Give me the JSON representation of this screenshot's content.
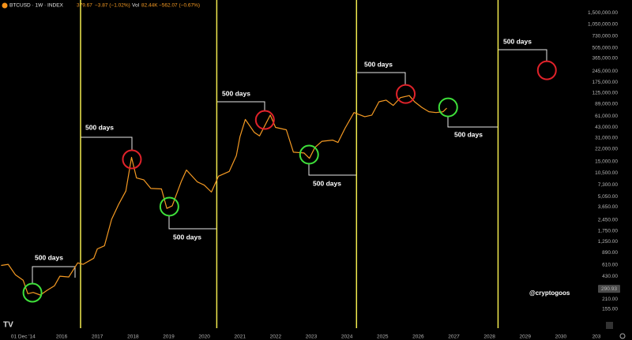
{
  "header": {
    "symbol": "BTCUSD · 1W · INDEX",
    "price": "379.67",
    "change": "−3.87 (−1.02%)",
    "vol_label": "Vol",
    "vol": "82.44K",
    "vol_change": "−562.07 (−0.67%)"
  },
  "chart_data": {
    "type": "line",
    "log_scale": true,
    "color": "#f59a23",
    "x": [
      2014.3,
      2014.5,
      2014.7,
      2014.92,
      2015.05,
      2015.2,
      2015.4,
      2015.6,
      2015.8,
      2015.95,
      2016.2,
      2016.45,
      2016.6,
      2016.9,
      2017.0,
      2017.2,
      2017.4,
      2017.6,
      2017.8,
      2017.96,
      2018.1,
      2018.3,
      2018.5,
      2018.8,
      2018.95,
      2019.1,
      2019.35,
      2019.5,
      2019.8,
      2020.0,
      2020.2,
      2020.4,
      2020.7,
      2020.9,
      2021.0,
      2021.15,
      2021.4,
      2021.55,
      2021.85,
      2022.0,
      2022.3,
      2022.5,
      2022.8,
      2022.95,
      2023.1,
      2023.3,
      2023.6,
      2023.75,
      2023.95,
      2024.2,
      2024.5,
      2024.7,
      2024.9,
      2025.1,
      2025.3,
      2025.5,
      2025.75,
      2025.9,
      2026.1,
      2026.3,
      2026.5,
      2026.7,
      2026.8
    ],
    "values": [
      600,
      620,
      450,
      380,
      250,
      260,
      240,
      280,
      320,
      430,
      420,
      650,
      620,
      750,
      1000,
      1100,
      2500,
      4000,
      6000,
      17000,
      9000,
      8500,
      6500,
      6400,
      3500,
      3800,
      8000,
      11500,
      8000,
      7200,
      5800,
      9500,
      11000,
      18000,
      32000,
      55000,
      37000,
      33000,
      63000,
      43000,
      40000,
      20000,
      19500,
      16500,
      23000,
      28000,
      29000,
      27000,
      42000,
      68000,
      60000,
      63000,
      95000,
      100000,
      85000,
      108000,
      115000,
      95000,
      80000,
      70000,
      68000,
      70000,
      78000
    ],
    "xlim": [
      2014.27,
      2031.0
    ],
    "ylim": [
      86,
      2220000
    ],
    "xticks": [
      {
        "value": 2014.92,
        "label": "01 Dec '14"
      },
      2016,
      2017,
      2018,
      2019,
      2020,
      2021,
      2022,
      2023,
      2024,
      2025,
      2026,
      2027,
      2028,
      2029,
      2030,
      {
        "value": 2031,
        "label": "203"
      }
    ],
    "yticks": [
      {
        "value": 1500000,
        "label": "1,500,000.00"
      },
      {
        "value": 1050000,
        "label": "1,050,000.00"
      },
      {
        "value": 730000,
        "label": "730,000.00"
      },
      {
        "value": 505000,
        "label": "505,000.00"
      },
      {
        "value": 365000,
        "label": "365,000.00"
      },
      {
        "value": 245000,
        "label": "245,000.00"
      },
      {
        "value": 175000,
        "label": "175,000.00"
      },
      {
        "value": 125000,
        "label": "125,000.00"
      },
      {
        "value": 89000,
        "label": "89,000.00"
      },
      {
        "value": 61000,
        "label": "61,000.00"
      },
      {
        "value": 43000,
        "label": "43,000.00"
      },
      {
        "value": 31000,
        "label": "31,000.00"
      },
      {
        "value": 22000,
        "label": "22,000.00"
      },
      {
        "value": 15000,
        "label": "15,000.00"
      },
      {
        "value": 10500,
        "label": "10,500.00"
      },
      {
        "value": 7300,
        "label": "7,300.00"
      },
      {
        "value": 5050,
        "label": "5,050.00"
      },
      {
        "value": 3650,
        "label": "3,650.00"
      },
      {
        "value": 2450,
        "label": "2,450.00"
      },
      {
        "value": 1750,
        "label": "1,750.00"
      },
      {
        "value": 1250,
        "label": "1,250.00"
      },
      {
        "value": 890,
        "label": "890.00"
      },
      {
        "value": 610,
        "label": "610.00"
      },
      {
        "value": 430,
        "label": "430.00"
      },
      {
        "value": 210,
        "label": "210.00"
      },
      {
        "value": 155,
        "label": "155.00"
      }
    ],
    "last_price": {
      "value": 290.93,
      "label": "290.93"
    },
    "vertical_lines": {
      "color": "#f2ea4f",
      "x": [
        2016.53,
        2020.35,
        2024.27,
        2028.24
      ]
    },
    "markers": [
      {
        "x": 2015.18,
        "y": 258,
        "color": "#3ee03a"
      },
      {
        "x": 2017.97,
        "y": 16000,
        "color": "#e0222a"
      },
      {
        "x": 2019.02,
        "y": 3700,
        "color": "#3ee03a"
      },
      {
        "x": 2021.7,
        "y": 54200,
        "color": "#e0222a"
      },
      {
        "x": 2022.94,
        "y": 18500,
        "color": "#3ee03a"
      },
      {
        "x": 2025.65,
        "y": 121000,
        "color": "#e0222a"
      },
      {
        "x": 2026.84,
        "y": 80000,
        "color": "#3ee03a"
      },
      {
        "x": 2029.61,
        "y": 252000,
        "color": "#e0222a"
      }
    ],
    "annotations": [
      "500 days",
      "500 days",
      "500 days",
      "500 days",
      "500 days",
      "500 days",
      "500 days",
      "500 days"
    ],
    "watermark": "@cryptogoos"
  }
}
